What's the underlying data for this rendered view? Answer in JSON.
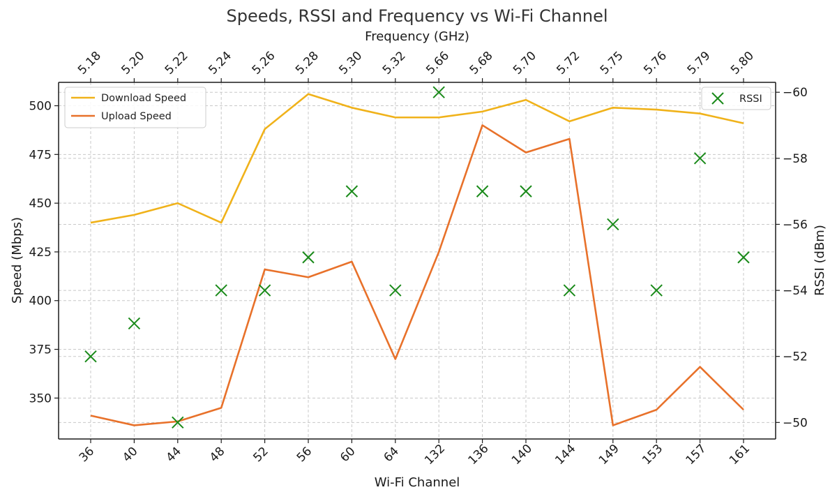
{
  "chart_data": {
    "type": "line",
    "title": "Speeds, RSSI and Frequency vs Wi-Fi Channel",
    "xlabel": "Wi-Fi Channel",
    "ylabel": "Speed (Mbps)",
    "y2label": "RSSI (dBm)",
    "top_xlabel": "Frequency (GHz)",
    "categories": [
      "36",
      "40",
      "44",
      "48",
      "52",
      "56",
      "60",
      "64",
      "132",
      "136",
      "140",
      "144",
      "149",
      "153",
      "157",
      "161"
    ],
    "frequencies": [
      "5.18",
      "5.20",
      "5.22",
      "5.24",
      "5.26",
      "5.28",
      "5.30",
      "5.32",
      "5.66",
      "5.68",
      "5.70",
      "5.72",
      "5.75",
      "5.76",
      "5.79",
      "5.80"
    ],
    "ylim": [
      329,
      512
    ],
    "yticks": [
      350,
      375,
      400,
      425,
      450,
      475,
      500
    ],
    "y2lim": [
      -49.5,
      -60.3
    ],
    "y2ticks": [
      -50,
      -52,
      -54,
      -56,
      -58,
      -60
    ],
    "y2ticklabels": [
      "−50",
      "−52",
      "−54",
      "−56",
      "−58",
      "−60"
    ],
    "grid": true,
    "series": [
      {
        "name": "Download Speed",
        "axis": "left",
        "kind": "line",
        "color": "#f0b21a",
        "values": [
          440,
          444,
          450,
          440,
          488,
          506,
          499,
          494,
          494,
          497,
          503,
          492,
          499,
          498,
          496,
          491
        ]
      },
      {
        "name": "Upload Speed",
        "axis": "left",
        "kind": "line",
        "color": "#e8712a",
        "values": [
          341,
          336,
          338,
          345,
          416,
          412,
          420,
          370,
          425,
          490,
          476,
          483,
          336,
          344,
          366,
          344
        ]
      },
      {
        "name": "RSSI",
        "axis": "right",
        "kind": "scatter",
        "marker": "x",
        "color": "#1a8a1a",
        "values": [
          -52,
          -53,
          -50,
          -54,
          -54,
          -55,
          -57,
          -54,
          -60,
          -57,
          -57,
          -54,
          -56,
          -54,
          -58,
          -55
        ]
      }
    ],
    "legend_left": {
      "position": "top-left",
      "entries": [
        "Download Speed",
        "Upload Speed"
      ]
    },
    "legend_right": {
      "position": "top-right",
      "entries": [
        "RSSI"
      ]
    }
  }
}
